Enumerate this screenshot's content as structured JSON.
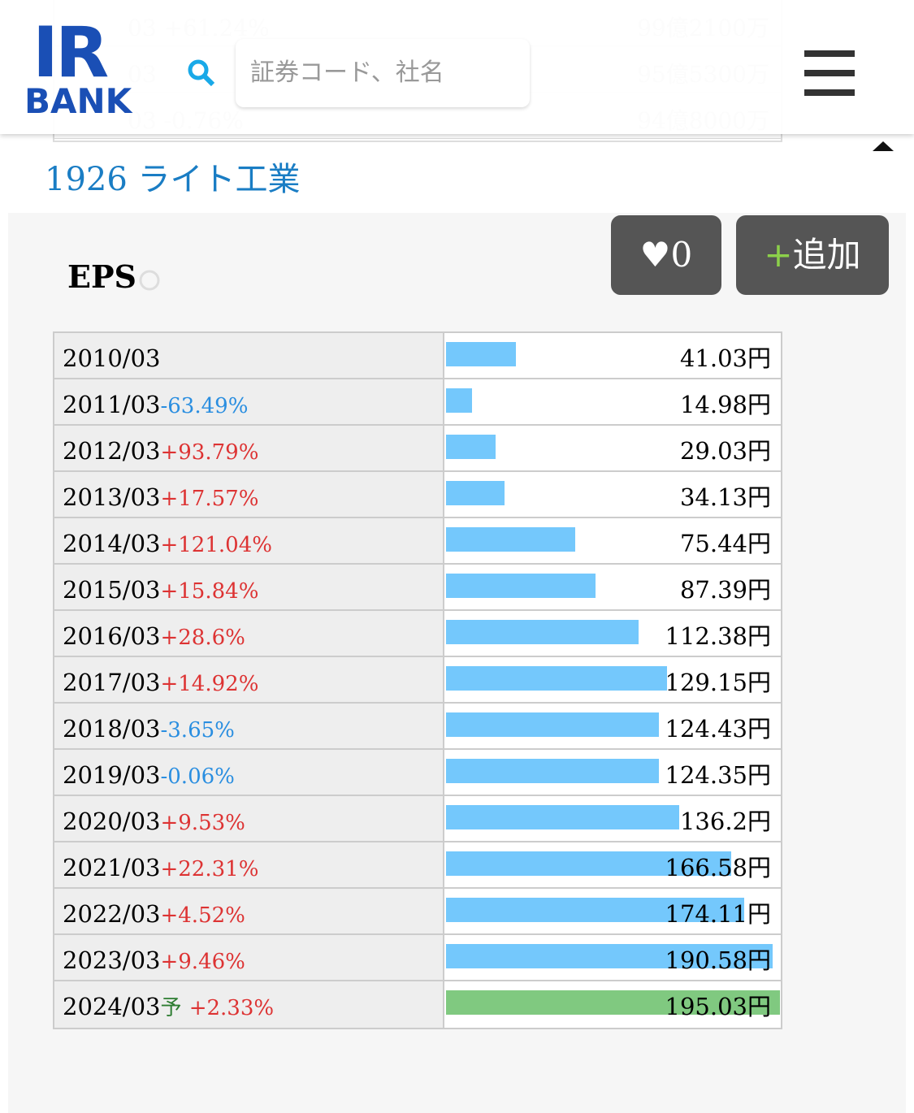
{
  "header": {
    "logo_top": "IR",
    "logo_bottom": "BANK",
    "search_placeholder": "証券コード、社名",
    "background_rows": [
      {
        "left": "03 +61.24%",
        "right": "99億2100万"
      },
      {
        "left": "03",
        "right": "95億5300万"
      },
      {
        "left": "03 -0.76%",
        "right": "94億8000万"
      }
    ]
  },
  "company_title": "1926 ライト工業",
  "section": {
    "title": "EPS",
    "like_count": "0",
    "add_button": "追加"
  },
  "table": {
    "rows": [
      {
        "period": "2010/03",
        "change": null,
        "value": 41.03,
        "value_label": "41.03円"
      },
      {
        "period": "2011/03",
        "change": "-63.49%",
        "value": 14.98,
        "value_label": "14.98円"
      },
      {
        "period": "2012/03",
        "change": "+93.79%",
        "value": 29.03,
        "value_label": "29.03円"
      },
      {
        "period": "2013/03",
        "change": "+17.57%",
        "value": 34.13,
        "value_label": "34.13円"
      },
      {
        "period": "2014/03",
        "change": "+121.04%",
        "value": 75.44,
        "value_label": "75.44円"
      },
      {
        "period": "2015/03",
        "change": "+15.84%",
        "value": 87.39,
        "value_label": "87.39円"
      },
      {
        "period": "2016/03",
        "change": "+28.6%",
        "value": 112.38,
        "value_label": "112.38円"
      },
      {
        "period": "2017/03",
        "change": "+14.92%",
        "value": 129.15,
        "value_label": "129.15円"
      },
      {
        "period": "2018/03",
        "change": "-3.65%",
        "value": 124.43,
        "value_label": "124.43円"
      },
      {
        "period": "2019/03",
        "change": "-0.06%",
        "value": 124.35,
        "value_label": "124.35円"
      },
      {
        "period": "2020/03",
        "change": "+9.53%",
        "value": 136.2,
        "value_label": "136.2円"
      },
      {
        "period": "2021/03",
        "change": "+22.31%",
        "value": 166.58,
        "value_label": "166.58円"
      },
      {
        "period": "2022/03",
        "change": "+4.52%",
        "value": 174.11,
        "value_label": "174.11円"
      },
      {
        "period": "2023/03",
        "change": "+9.46%",
        "value": 190.58,
        "value_label": "190.58円"
      },
      {
        "period": "2024/03",
        "forecast_mark": "予",
        "change": "+2.33%",
        "value": 195.03,
        "value_label": "195.03円"
      }
    ]
  }
}
